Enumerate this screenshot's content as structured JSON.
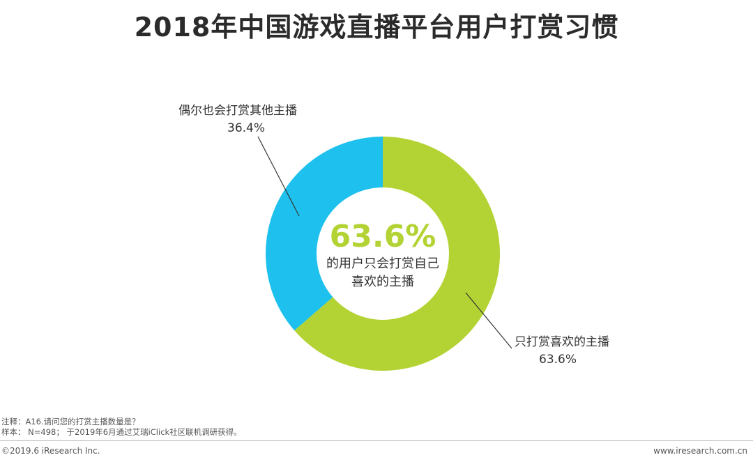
{
  "title": "2018年中国游戏直播平台用户打赏习惯",
  "chart_data": {
    "type": "pie",
    "donut": true,
    "title": "2018年中国游戏直播平台用户打赏习惯",
    "slices": [
      {
        "name": "只打赏喜欢的主播",
        "value": 63.6,
        "value_label": "63.6%",
        "color": "#b3d334"
      },
      {
        "name": "偶尔也会打赏其他主播",
        "value": 36.4,
        "value_label": "36.4%",
        "color": "#1ec0ee"
      }
    ],
    "center": {
      "value_label": "63.6%",
      "value_color": "#b3d334",
      "desc_line1": "的用户只会打赏自己",
      "desc_line2": "喜欢的主播"
    }
  },
  "footer": {
    "note_line1": "注释：A16.请问您的打赏主播数量是？",
    "note_line2": "样本： N=498； 于2019年6月通过艾瑞iClick社区联机调研获得。",
    "copyright": "©2019.6 iResearch Inc.",
    "website": "www.iresearch.com.cn"
  }
}
